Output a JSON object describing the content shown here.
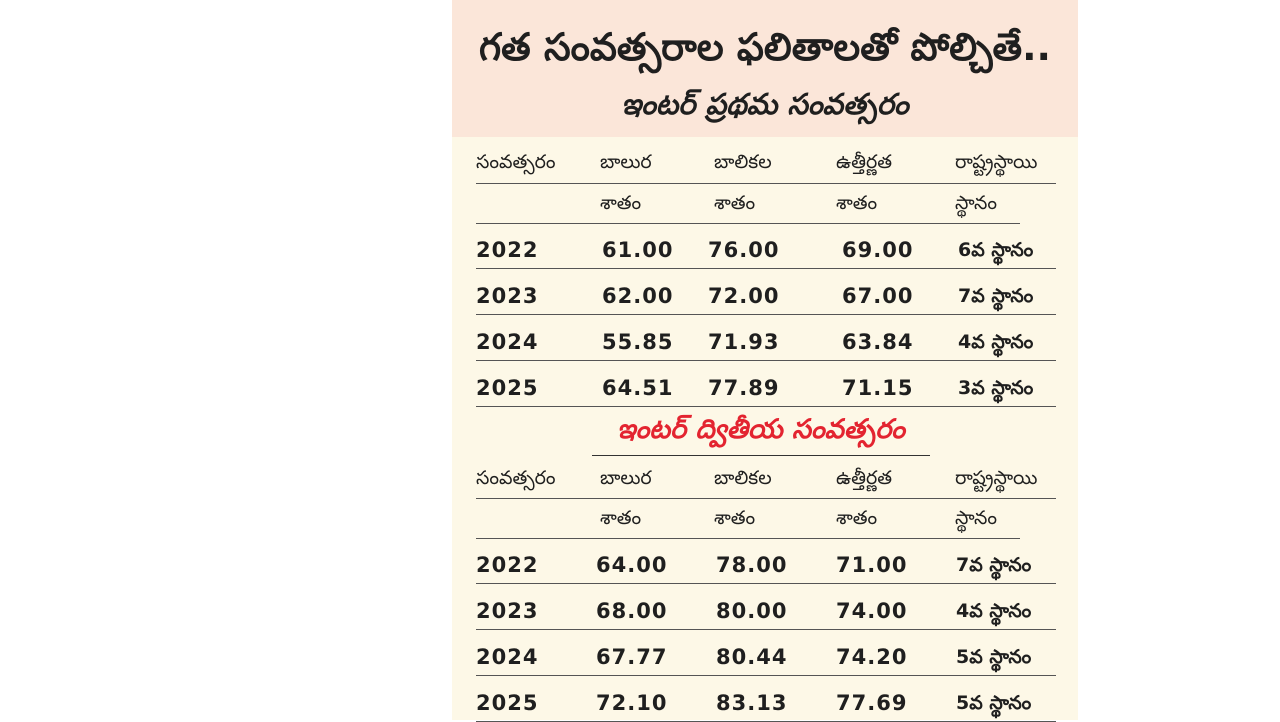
{
  "main_title": "గత సంవత్సరాల ఫలితాలతో పోల్చితే..",
  "section1": {
    "title": "ఇంటర్‌ ప్రథమ సంవత్సరం",
    "headers_row1": [
      "సంవత్సరం",
      "బాలుర",
      "బాలికల",
      "ఉత్తీర్ణత",
      "రాష్ట్రస్థాయి"
    ],
    "headers_row2": [
      "",
      "శాతం",
      "శాతం",
      "శాతం",
      "స్థానం"
    ],
    "rows": [
      [
        "2022",
        "61.00",
        "76.00",
        "69.00",
        "6వ స్థానం"
      ],
      [
        "2023",
        "62.00",
        "72.00",
        "67.00",
        "7వ స్థానం"
      ],
      [
        "2024",
        "55.85",
        "71.93",
        "63.84",
        "4వ స్థానం"
      ],
      [
        "2025",
        "64.51",
        "77.89",
        "71.15",
        "3వ స్థానం"
      ]
    ]
  },
  "section2": {
    "title": "ఇంటర్‌ ద్వితీయ సంవత్సరం",
    "headers_row1": [
      "సంవత్సరం",
      "బాలుర",
      "బాలికల",
      "ఉత్తీర్ణత",
      "రాష్ట్రస్థాయి"
    ],
    "headers_row2": [
      "",
      "శాతం",
      "శాతం",
      "శాతం",
      "స్థానం"
    ],
    "rows": [
      [
        "2022",
        "64.00",
        "78.00",
        "71.00",
        "7వ స్థానం"
      ],
      [
        "2023",
        "68.00",
        "80.00",
        "74.00",
        "4వ స్థానం"
      ],
      [
        "2024",
        "67.77",
        "80.44",
        "74.20",
        "5వ స్థానం"
      ],
      [
        "2025",
        "72.10",
        "83.13",
        "77.69",
        "5వ స్థానం"
      ]
    ]
  },
  "colors": {
    "panel_bg": "#fdf8e7",
    "header_bg": "#fbe6d9",
    "accent_red": "#e32430",
    "text": "#1f1f1f"
  }
}
